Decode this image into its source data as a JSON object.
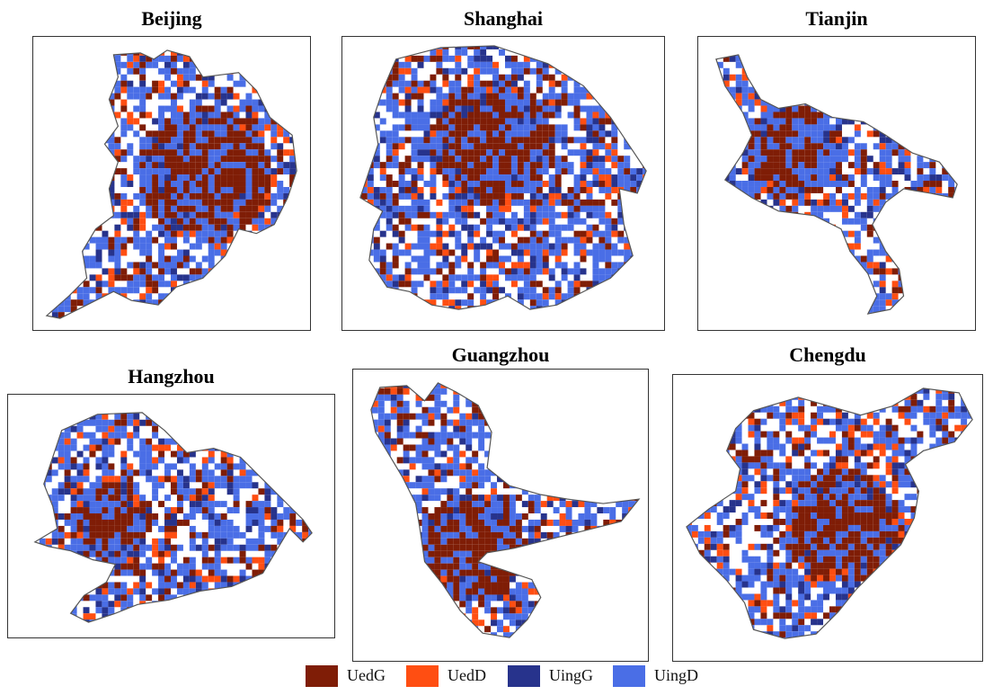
{
  "categories": [
    {
      "key": "UedG",
      "label": "UedG",
      "color": "#7f1d06"
    },
    {
      "key": "UedD",
      "label": "UedD",
      "color": "#ff4e12"
    },
    {
      "key": "UingG",
      "label": "UingG",
      "color": "#27338c"
    },
    {
      "key": "UingD",
      "label": "UingD",
      "color": "#4a6ee6"
    }
  ],
  "outline_color": "#555555",
  "cities": [
    {
      "name": "Beijing"
    },
    {
      "name": "Shanghai"
    },
    {
      "name": "Tianjin"
    },
    {
      "name": "Hangzhou"
    },
    {
      "name": "Guangzhou"
    },
    {
      "name": "Chengdu"
    }
  ]
}
